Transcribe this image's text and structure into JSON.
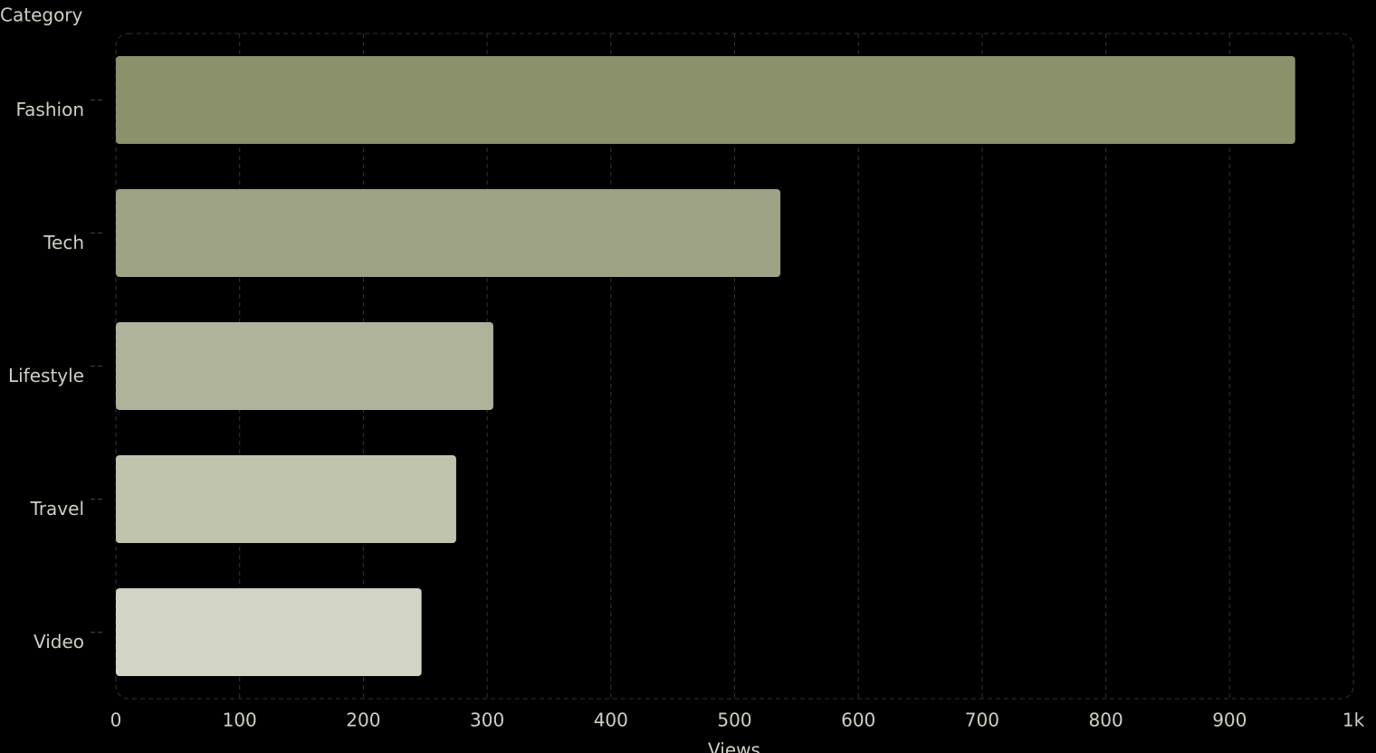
{
  "chart_data": {
    "type": "bar",
    "orientation": "horizontal",
    "x_label": "Views",
    "y_label": "Category",
    "categories": [
      "Fashion",
      "Tech",
      "Lifestyle",
      "Travel",
      "Video"
    ],
    "values": [
      953,
      537,
      305,
      275,
      247
    ],
    "colors": [
      "#8b916b",
      "#9da384",
      "#aeb399",
      "#c1c4ad",
      "#d2d4c5"
    ],
    "xlim": [
      0,
      1000
    ],
    "xticks": [
      0,
      100,
      200,
      300,
      400,
      500,
      600,
      700,
      800,
      900,
      {
        "value": 1000,
        "label": "1k"
      }
    ],
    "grid": true
  }
}
